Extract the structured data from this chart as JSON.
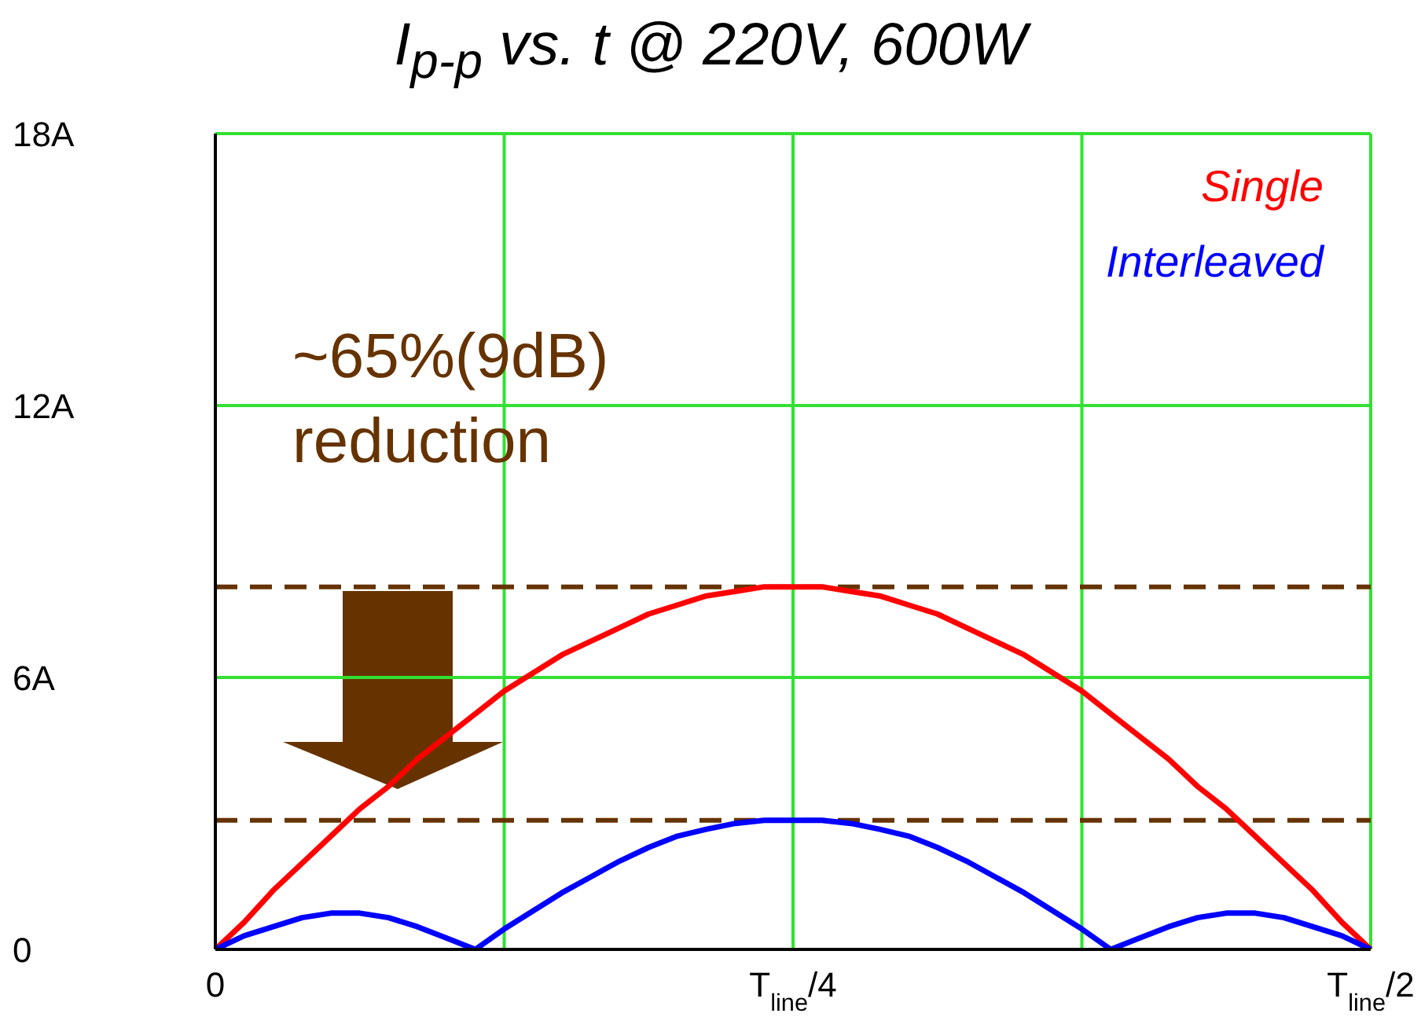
{
  "chart_data": {
    "type": "line",
    "title": "I$_{p-p}$ vs. t @ 220V, 600W",
    "categories": [
      "0",
      null,
      null,
      null,
      null,
      null,
      null,
      null,
      null,
      null,
      null,
      null,
      null,
      null,
      null,
      null,
      null,
      null,
      null,
      null,
      "T$_{line}$/4",
      null,
      null,
      null,
      null,
      null,
      null,
      null,
      null,
      null,
      null,
      null,
      null,
      null,
      null,
      null,
      null,
      null,
      null,
      null,
      "T$_{line}$/2"
    ],
    "ylim": [
      0,
      18
    ],
    "yticks": [
      {
        "value": 0,
        "label": "0"
      },
      {
        "value": 6,
        "label": "6A"
      },
      {
        "value": 12,
        "label": "12A"
      },
      {
        "value": 18,
        "label": "18A"
      }
    ],
    "grid": true,
    "legend": "top right",
    "marker": "none",
    "line_style": "solid",
    "series": [
      {
        "name": "Single",
        "color": "#ff0000",
        "values": [
          0,
          0.6,
          1.3,
          1.9,
          2.5,
          3.1,
          3.6,
          4.2,
          4.7,
          5.2,
          5.7,
          6.1,
          6.5,
          6.8,
          7.1,
          7.4,
          7.6,
          7.8,
          7.9,
          8,
          8,
          8,
          7.9,
          7.8,
          7.6,
          7.4,
          7.1,
          6.8,
          6.5,
          6.1,
          5.7,
          5.2,
          4.7,
          4.2,
          3.6,
          3.1,
          2.5,
          1.9,
          1.3,
          0.6,
          0
        ]
      },
      {
        "name": "Interleaved",
        "color": "#0000ff",
        "values": [
          0,
          0.3,
          0.5,
          0.7,
          0.8,
          0.8,
          0.7,
          0.5,
          0.25,
          0,
          0.45,
          0.85,
          1.25,
          1.6,
          1.95,
          2.25,
          2.5,
          2.65,
          2.78,
          2.85,
          2.85,
          2.85,
          2.78,
          2.65,
          2.5,
          2.25,
          1.95,
          1.6,
          1.25,
          0.85,
          0.45,
          0,
          0.25,
          0.5,
          0.7,
          0.8,
          0.8,
          0.7,
          0.5,
          0.3,
          0
        ]
      }
    ],
    "ref_lines": [
      {
        "axis": "y",
        "value": 8,
        "color": "#663300",
        "line_style": "dashed"
      },
      {
        "axis": "y",
        "value": 2.85,
        "color": "#663300",
        "line_style": "dashed"
      }
    ],
    "annotations": [
      "~65%(9dB)\nreduction"
    ]
  }
}
